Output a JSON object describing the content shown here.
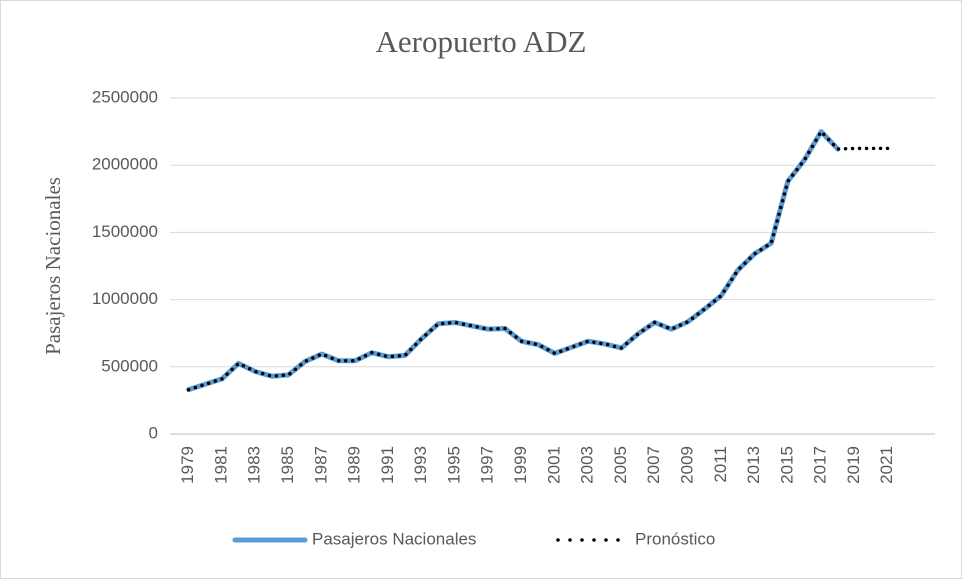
{
  "chart_data": {
    "type": "line",
    "title": "Aeropuerto ADZ",
    "y_label": "Pasajeros Nacionales",
    "x": [
      1979,
      1980,
      1981,
      1982,
      1983,
      1984,
      1985,
      1986,
      1987,
      1988,
      1989,
      1990,
      1991,
      1992,
      1993,
      1994,
      1995,
      1996,
      1997,
      1998,
      1999,
      2000,
      2001,
      2002,
      2003,
      2004,
      2005,
      2006,
      2007,
      2008,
      2009,
      2010,
      2011,
      2012,
      2013,
      2014,
      2015,
      2016,
      2017,
      2018,
      2019,
      2020,
      2021
    ],
    "series": [
      {
        "name": "Pasajeros Nacionales",
        "color": "#5b9bd5",
        "style": "solid",
        "values": [
          330000,
          370000,
          410000,
          525000,
          465000,
          430000,
          440000,
          540000,
          595000,
          545000,
          545000,
          605000,
          575000,
          585000,
          710000,
          820000,
          830000,
          805000,
          780000,
          785000,
          690000,
          665000,
          600000,
          645000,
          690000,
          670000,
          640000,
          745000,
          830000,
          780000,
          835000,
          930000,
          1030000,
          1220000,
          1340000,
          1420000,
          1880000,
          2040000,
          2250000,
          2120000,
          null,
          null,
          null
        ]
      },
      {
        "name": "Pronóstico",
        "color": "#000000",
        "style": "dotted",
        "values": [
          330000,
          370000,
          410000,
          525000,
          465000,
          430000,
          440000,
          540000,
          595000,
          545000,
          545000,
          605000,
          575000,
          585000,
          710000,
          820000,
          830000,
          805000,
          780000,
          785000,
          690000,
          665000,
          600000,
          645000,
          690000,
          670000,
          640000,
          745000,
          830000,
          780000,
          835000,
          930000,
          1030000,
          1220000,
          1340000,
          1420000,
          1880000,
          2040000,
          2250000,
          2120000,
          2125000,
          2125000,
          2125000
        ]
      }
    ],
    "xlim": [
      1978,
      2023
    ],
    "xticks": [
      1979,
      1981,
      1983,
      1985,
      1987,
      1989,
      1991,
      1993,
      1995,
      1997,
      1999,
      2001,
      2003,
      2005,
      2007,
      2009,
      2011,
      2013,
      2015,
      2017,
      2019,
      2021
    ],
    "ylim": [
      0,
      2500000
    ],
    "yticks": [
      0,
      500000,
      1000000,
      1500000,
      2000000,
      2500000
    ],
    "grid": true,
    "legend": "bottom"
  }
}
